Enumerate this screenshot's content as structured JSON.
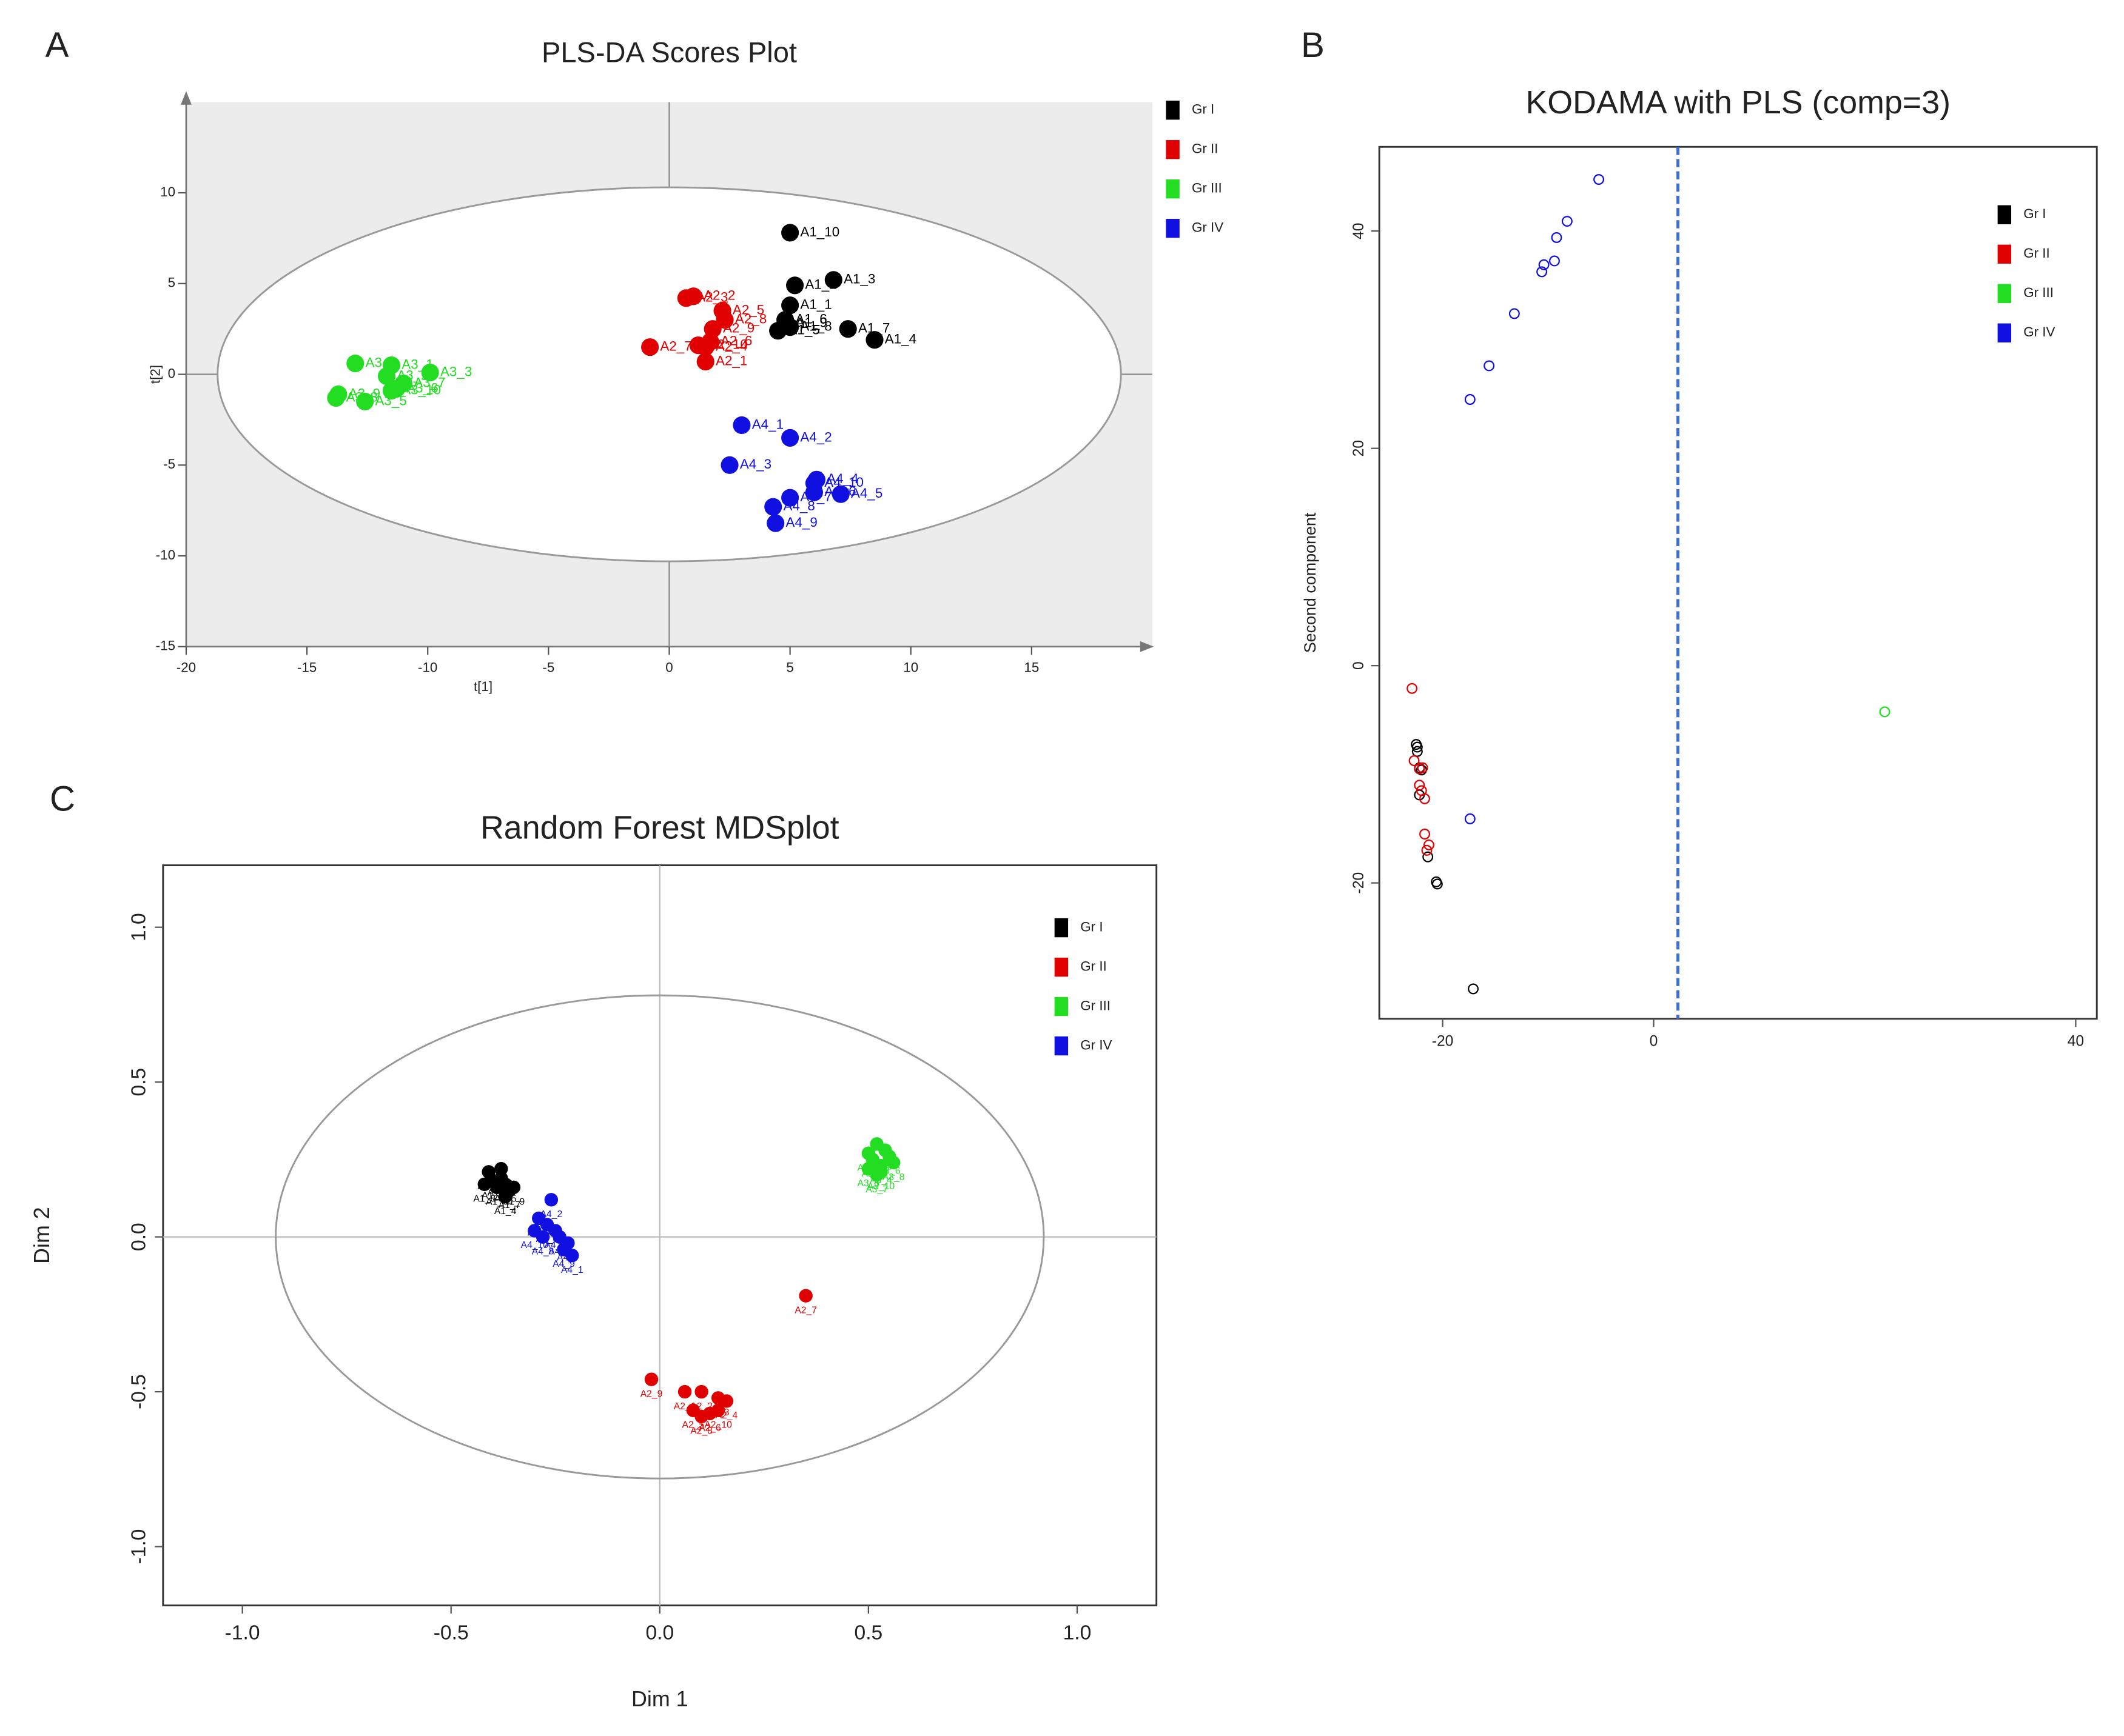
{
  "chart_data": [
    {
      "type": "scatter",
      "panel": "A",
      "title": "PLS-DA Scores Plot",
      "x_label": "t[1]",
      "y_label": "t[2]",
      "xlim": [
        -20,
        20
      ],
      "ylim": [
        -15,
        15
      ],
      "xticks": [
        -20,
        -15,
        -10,
        -5,
        0,
        5,
        10,
        15
      ],
      "yticks": [
        -15,
        -10,
        -5,
        0,
        5,
        10
      ],
      "plot_background": "#ececec",
      "zero_lines": true,
      "marker": "filled",
      "ellipse": {
        "cx": 0,
        "cy": 0,
        "rx": 18.7,
        "ry": 10.3
      },
      "series": [
        {
          "name": "Gr I",
          "color": "#000000",
          "x": [
            5,
            6.8,
            5.2,
            5,
            4.8,
            7.4,
            8.5,
            4.5,
            5,
            4.8
          ],
          "y": [
            7.8,
            5.2,
            4.9,
            3.8,
            3,
            2.5,
            1.9,
            2.4,
            2.6,
            2.8
          ],
          "labels": [
            "A1_10",
            "A1_3",
            "A1_2",
            "A1_1",
            "A1_6",
            "A1_7",
            "A1_4",
            "A1_5",
            "A1_8",
            "A1_9"
          ]
        },
        {
          "name": "Gr II",
          "color": "#e00000",
          "x": [
            1,
            0.7,
            2.2,
            2.3,
            1.8,
            1.7,
            1.5,
            1.2,
            -0.8,
            1.5
          ],
          "y": [
            4.3,
            4.2,
            3.5,
            3,
            2.5,
            1.8,
            1.5,
            1.6,
            1.5,
            0.7
          ],
          "labels": [
            "A2_2",
            "A2_3",
            "A2_5",
            "A2_8",
            "A2_9",
            "A2_6",
            "A2_4",
            "A2_10",
            "A2_7",
            "A2_1"
          ]
        },
        {
          "name": "Gr III",
          "color": "#22dd22",
          "x": [
            -11.5,
            -11.7,
            -9.9,
            -13,
            -12.6,
            -11.3,
            -11,
            -13.8,
            -13.7,
            -11.5
          ],
          "y": [
            0.5,
            -0.1,
            0.1,
            0.6,
            -1.5,
            -0.8,
            -0.5,
            -1.3,
            -1.1,
            -0.9
          ],
          "labels": [
            "A3_1",
            "A3_2",
            "A3_3",
            "A3_4",
            "A3_5",
            "A3_6",
            "A3_7",
            "A3_8",
            "A3_9",
            "A3_10"
          ]
        },
        {
          "name": "Gr IV",
          "color": "#1010e0",
          "x": [
            3,
            5,
            2.5,
            6.1,
            7.1,
            6,
            5,
            4.3,
            4.4,
            6
          ],
          "y": [
            -2.8,
            -3.5,
            -5,
            -5.8,
            -6.6,
            -6.5,
            -6.8,
            -7.3,
            -8.2,
            -6
          ],
          "labels": [
            "A4_1",
            "A4_2",
            "A4_3",
            "A4_4",
            "A4_5",
            "A4_6",
            "A4_7",
            "A4_8",
            "A4_9",
            "A4_10"
          ]
        }
      ]
    },
    {
      "type": "scatter",
      "panel": "B",
      "title": "KODAMA with PLS (comp=3)",
      "y_label": "Second component",
      "xlim": [
        -26,
        42
      ],
      "ylim": [
        -32.5,
        47.75
      ],
      "xticks": [
        -20,
        0,
        40
      ],
      "yticks": [
        -20,
        0,
        20,
        40
      ],
      "marker": "hollow",
      "vline": 2.3,
      "series": [
        {
          "name": "Gr I",
          "color": "#000000",
          "x": [
            -22.5,
            -22.4,
            -22.2,
            -22,
            -22.2,
            -21.4,
            -20.6,
            -20.5,
            -17.1,
            -22.4
          ],
          "y": [
            -7.25,
            -7.9,
            -9.4,
            -9.6,
            -11.9,
            -17.6,
            -19.9,
            -20.1,
            -29.75,
            -7.5
          ]
        },
        {
          "name": "Gr II",
          "color": "#e00000",
          "x": [
            -22.9,
            -22.7,
            -22.2,
            -22,
            -21.7,
            -21.7,
            -21.3,
            -21.5,
            -22.2,
            -21.9
          ],
          "y": [
            -2.1,
            -8.75,
            -11,
            -11.5,
            -12.25,
            -15.5,
            -16.5,
            -17,
            -9.5,
            -9.4
          ]
        },
        {
          "name": "Gr III",
          "color": "#22dd22",
          "x": [
            21.9
          ],
          "y": [
            -4.25
          ]
        },
        {
          "name": "Gr IV",
          "color": "#1010e0",
          "x": [
            -5.2,
            -8.2,
            -9.2,
            -9.4,
            -10.4,
            -10.6,
            -13.2,
            -15.6,
            -17.4,
            -17.4
          ],
          "y": [
            44.75,
            40.9,
            39.4,
            37.25,
            36.9,
            36.25,
            32.4,
            27.6,
            24.5,
            -14.1
          ]
        }
      ]
    },
    {
      "type": "scatter",
      "panel": "C",
      "title": "Random Forest MDSplot",
      "x_label": "Dim 1",
      "y_label": "Dim 2",
      "xlim": [
        -1.19,
        1.19
      ],
      "ylim": [
        -1.19,
        1.2
      ],
      "xticks": [
        {
          "value": -1,
          "label": "-1.0"
        },
        -0.5,
        {
          "value": 0,
          "label": "0.0"
        },
        0.5,
        {
          "value": 1,
          "label": "1.0"
        }
      ],
      "yticks": [
        {
          "value": -1,
          "label": "-1.0"
        },
        -0.5,
        {
          "value": 0,
          "label": "0.0"
        },
        0.5,
        {
          "value": 1,
          "label": "1.0"
        }
      ],
      "zero_lines": true,
      "marker": "filled",
      "ellipse": {
        "cx": 0,
        "cy": 0,
        "rx": 0.92,
        "ry": 0.78
      },
      "series": [
        {
          "name": "Gr I",
          "color": "#000000",
          "x": [
            -0.41,
            -0.38,
            -0.4,
            -0.37,
            -0.39,
            -0.36,
            -0.42,
            -0.35,
            -0.38,
            -0.37
          ],
          "y": [
            0.21,
            0.22,
            0.18,
            0.17,
            0.16,
            0.15,
            0.17,
            0.16,
            0.19,
            0.13
          ],
          "labels": [
            "A1_1",
            "A1_2",
            "A1_3",
            "A1_5",
            "A1_6",
            "A1_7",
            "A1_8",
            "A1_9",
            "A1_10",
            "A1_4"
          ]
        },
        {
          "name": "Gr II",
          "color": "#e00000",
          "x": [
            0.35,
            -0.02,
            0.06,
            0.1,
            0.14,
            0.16,
            0.08,
            0.12,
            0.1,
            0.14
          ],
          "y": [
            -0.19,
            -0.46,
            -0.5,
            -0.5,
            -0.52,
            -0.53,
            -0.56,
            -0.57,
            -0.58,
            -0.56
          ],
          "labels": [
            "A2_7",
            "A2_9",
            "A2_1",
            "A2_2",
            "A2_3",
            "A2_4",
            "A2_5",
            "A2_6",
            "A2_8",
            "A2_10"
          ]
        },
        {
          "name": "Gr III",
          "color": "#22dd22",
          "x": [
            0.52,
            0.54,
            0.51,
            0.53,
            0.5,
            0.55,
            0.52,
            0.56,
            0.5,
            0.53
          ],
          "y": [
            0.3,
            0.28,
            0.25,
            0.23,
            0.22,
            0.26,
            0.2,
            0.24,
            0.27,
            0.21
          ],
          "labels": [
            "A3_1",
            "A3_2",
            "A3_3",
            "A3_4",
            "A3_5",
            "A3_6",
            "A3_7",
            "A3_8",
            "A3_9",
            "A3_10"
          ]
        },
        {
          "name": "Gr IV",
          "color": "#1010e0",
          "x": [
            -0.26,
            -0.29,
            -0.27,
            -0.25,
            -0.24,
            -0.22,
            -0.21,
            -0.28,
            -0.23,
            -0.3
          ],
          "y": [
            0.12,
            0.06,
            0.04,
            0.02,
            0,
            -0.02,
            -0.06,
            0,
            -0.04,
            0.02
          ],
          "labels": [
            "A4_2",
            "A4_3",
            "A4_4",
            "A4_5",
            "A4_6",
            "A4_7",
            "A4_1",
            "A4_8",
            "A4_9",
            "A4_10"
          ]
        }
      ]
    }
  ]
}
